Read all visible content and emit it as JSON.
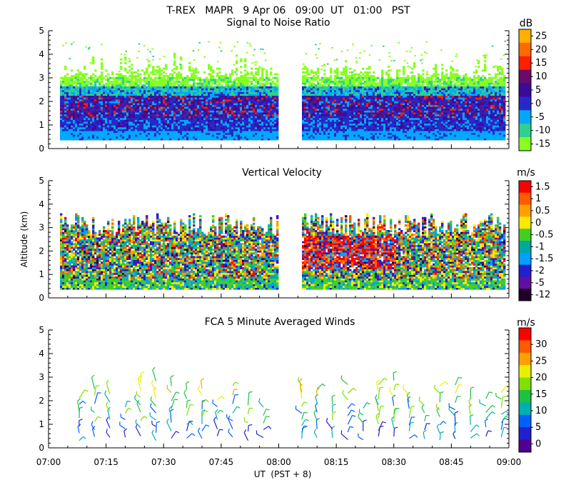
{
  "header": {
    "title": "T-REX   MAPR   9 Apr 06   09:00  UT   01:00   PST"
  },
  "axes": {
    "ylabel": "Altitude (km)",
    "xlabel": "UT  (PST + 8)",
    "y_ticks": [
      "0",
      "1",
      "2",
      "3",
      "4",
      "5"
    ],
    "x_ticks": [
      "07:00",
      "07:15",
      "07:30",
      "07:45",
      "08:00",
      "08:15",
      "08:30",
      "08:45",
      "09:00"
    ]
  },
  "chart_data": [
    {
      "type": "heatmap",
      "title": "Signal to Noise Ratio",
      "xlabel": "UT  (PST + 8)",
      "ylabel": "Altitude (km)",
      "x_range": [
        "07:00",
        "09:00"
      ],
      "ylim": [
        0,
        5
      ],
      "data_gap": [
        "08:00",
        "08:06"
      ],
      "colorbar": {
        "unit": "dB",
        "labels": [
          "25",
          "20",
          "15",
          "10",
          "5",
          "0",
          "-5",
          "-10",
          "-15"
        ],
        "colors": [
          "#ffb000",
          "#ff6a00",
          "#ff2000",
          "#6a0a6a",
          "#3a0a9a",
          "#2828c8",
          "#00a8ff",
          "#30d090",
          "#88ff20"
        ]
      },
      "profile": [
        {
          "altitude_km": 0.5,
          "level_db": -5
        },
        {
          "altitude_km": 1.0,
          "level_db": -3
        },
        {
          "altitude_km": 1.5,
          "level_db": 3
        },
        {
          "altitude_km": 2.0,
          "level_db": 2
        },
        {
          "altitude_km": 2.5,
          "level_db": -6
        },
        {
          "altitude_km": 3.0,
          "level_db": -11
        },
        {
          "altitude_km": 3.5,
          "level_db": -15
        }
      ]
    },
    {
      "type": "heatmap",
      "title": "Vertical Velocity",
      "xlabel": "UT  (PST + 8)",
      "ylabel": "Altitude (km)",
      "x_range": [
        "07:00",
        "09:00"
      ],
      "ylim": [
        0,
        5
      ],
      "data_gap": [
        "08:00",
        "08:06"
      ],
      "colorbar": {
        "unit": "m/s",
        "labels": [
          "1.5",
          "1",
          "0.5",
          "0",
          "-0.5",
          "-1",
          "-1.5",
          "-2",
          "-5",
          "-12"
        ],
        "colors": [
          "#ff0000",
          "#ff5a00",
          "#ffa000",
          "#ffe800",
          "#40d020",
          "#00a8a0",
          "#00a0ff",
          "#2020d0",
          "#6010a0",
          "#200028"
        ]
      }
    },
    {
      "type": "scatter",
      "title": "FCA 5 Minute Averaged Winds",
      "xlabel": "UT  (PST + 8)",
      "ylabel": "Altitude (km)",
      "x_range": [
        "07:00",
        "09:00"
      ],
      "ylim": [
        0,
        5
      ],
      "colorbar": {
        "unit": "m/s",
        "labels": [
          "30",
          "25",
          "20",
          "15",
          "10",
          "5",
          "0"
        ],
        "colors": [
          "#ff0000",
          "#ff5a00",
          "#ffa000",
          "#e8f000",
          "#80e000",
          "#20c040",
          "#00b0b0",
          "#0060ff",
          "#2020d0",
          "#500090"
        ]
      },
      "wind_columns": [
        "07:08",
        "07:12",
        "07:16",
        "07:20",
        "07:24",
        "07:28",
        "07:32",
        "07:36",
        "07:40",
        "07:44",
        "07:48",
        "07:52",
        "07:56",
        "08:06",
        "08:10",
        "08:14",
        "08:18",
        "08:22",
        "08:26",
        "08:30",
        "08:34",
        "08:38",
        "08:42",
        "08:46",
        "08:50",
        "08:54",
        "08:58"
      ]
    }
  ]
}
